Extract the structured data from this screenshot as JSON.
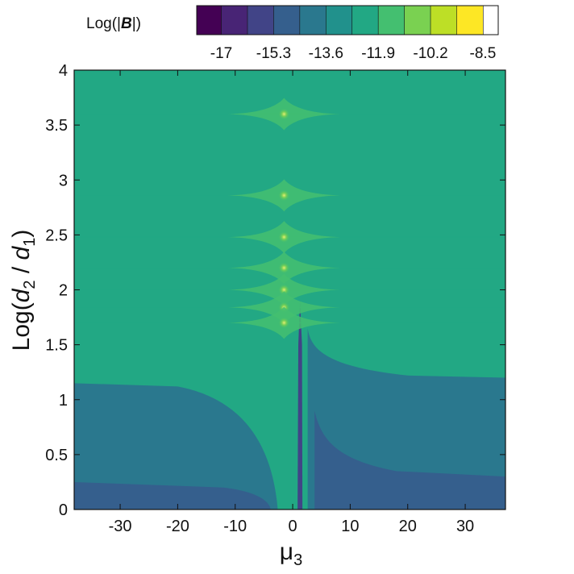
{
  "chart_data": {
    "type": "heatmap",
    "xlabel": "μ3",
    "xlabel_main": "μ",
    "xlabel_sub": "3",
    "ylabel": "Log(d2 / d1)",
    "ylabel_parts": {
      "prefix": "Log(",
      "d2_main": "d",
      "d2_sub": "2",
      "sep": " / ",
      "d1_main": "d",
      "d1_sub": "1",
      "suffix": ")"
    },
    "xlim": [
      -38,
      37
    ],
    "ylim": [
      0,
      4
    ],
    "xticks": [
      -30,
      -20,
      -10,
      0,
      10,
      20,
      30
    ],
    "xtick_labels": [
      "-30",
      "-20",
      "-10",
      "0",
      "10",
      "20",
      "30"
    ],
    "yticks": [
      0,
      0.5,
      1,
      1.5,
      2,
      2.5,
      3,
      3.5,
      4
    ],
    "ytick_labels": [
      "0",
      "0.5",
      "1",
      "1.5",
      "2",
      "2.5",
      "3",
      "3.5",
      "4"
    ],
    "colorbar": {
      "title_prefix": "Log(|",
      "title_bold": "B",
      "title_suffix": "|)",
      "levels": [
        -17.8,
        -17,
        -16.15,
        -15.3,
        -14.45,
        -13.6,
        -12.75,
        -11.9,
        -11.05,
        -10.2,
        -9.35,
        -8.5,
        -8.0
      ],
      "tick_values": [
        -17,
        -15.3,
        -13.6,
        -11.9,
        -10.2,
        -8.5
      ],
      "tick_labels": [
        "-17",
        "-15.3",
        "-13.6",
        "-11.9",
        "-10.2",
        "-8.5"
      ],
      "colors": [
        "#440154",
        "#482475",
        "#414487",
        "#355f8d",
        "#2a788e",
        "#21918c",
        "#22a884",
        "#44bf70",
        "#7ad151",
        "#bddf26",
        "#fde725"
      ]
    },
    "base_level": -12.3,
    "resonance_y_values": [
      3.6,
      2.86,
      2.48,
      2.2,
      2.0,
      1.84,
      1.7
    ],
    "lower_band_boundaries": {
      "left_upper": 1.15,
      "left_lower": 0.25,
      "right_upper": 1.2,
      "right_lower": 0.3
    },
    "grid": false
  }
}
